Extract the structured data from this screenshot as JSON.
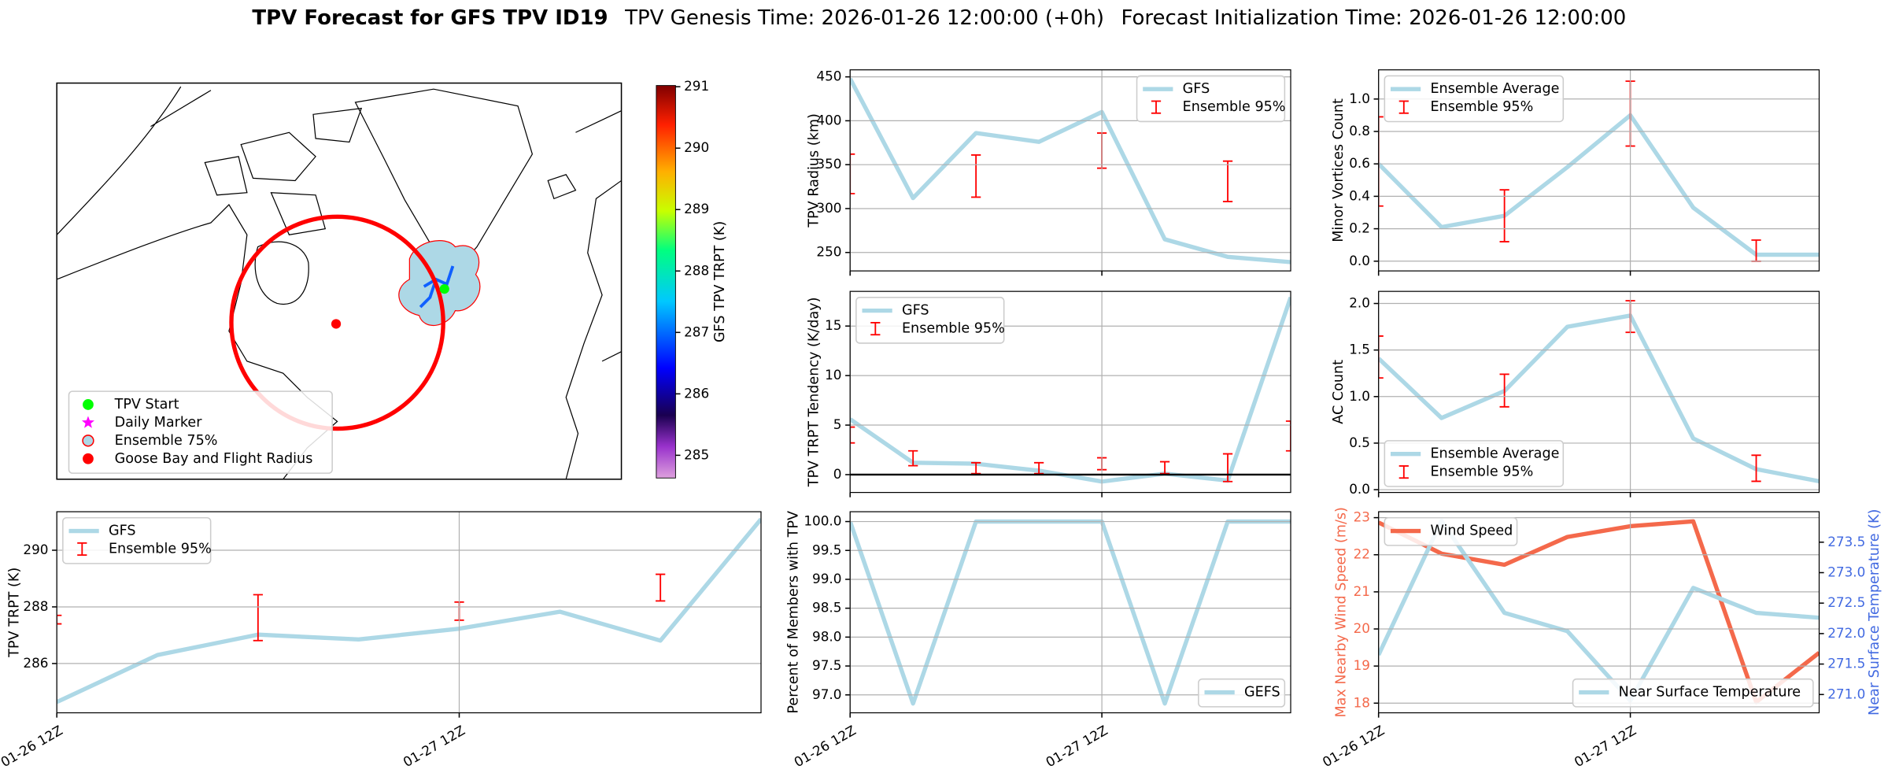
{
  "title": {
    "main": "TPV Forecast for GFS TPV ID19",
    "genesis": "TPV Genesis Time: 2026-01-26 12:00:00 (+0h)",
    "init": "Forecast Initialization Time: 2026-01-26 12:00:00"
  },
  "chart_data": [
    {
      "type": "map",
      "legend": [
        {
          "name": "TPV Start",
          "marker": "o",
          "color": "#00ff00"
        },
        {
          "name": "Daily Marker",
          "marker": "*",
          "color": "#ff00ff"
        },
        {
          "name": "Ensemble 75%",
          "marker": "o",
          "color": "#add8e6",
          "edgecolor": "#ff0000"
        },
        {
          "name": "Goose Bay and Flight Radius",
          "marker": "o",
          "color": "#ff0000"
        }
      ],
      "legend_loc": "lower left",
      "colorbar": {
        "label": "GFS TPV TRPT (K)",
        "lim": [
          284.63,
          291.02
        ],
        "ticks": [
          285,
          286,
          287,
          288,
          289,
          290,
          291
        ]
      }
    },
    {
      "type": "line",
      "ylabel": "TPV Radius (km)",
      "grid": true,
      "legend": "upper right",
      "x": [
        "01-26 12Z",
        "01-26 18Z",
        "01-27 00Z",
        "01-27 06Z",
        "01-27 12Z",
        "01-27 18Z",
        "01-28 00Z",
        "01-28 06Z"
      ],
      "ylim": [
        229,
        458
      ],
      "yticks": [
        250,
        300,
        350,
        400,
        450
      ],
      "series": [
        {
          "name": "GFS",
          "color": "#add8e6",
          "values": [
            448,
            312,
            386,
            376,
            410,
            265,
            245,
            239
          ]
        },
        {
          "name": "Ensemble 95%",
          "type": "errorbar",
          "color": "#ff0000",
          "values": [
            [
              317,
              362
            ],
            null,
            [
              313,
              361
            ],
            null,
            [
              346,
              386
            ],
            null,
            [
              308,
              354
            ],
            null
          ]
        }
      ]
    },
    {
      "type": "line",
      "ylabel": "Minor Vortices Count",
      "grid": true,
      "legend": "upper left",
      "x": [
        "01-26 12Z",
        "01-26 18Z",
        "01-27 00Z",
        "01-27 06Z",
        "01-27 12Z",
        "01-27 18Z",
        "01-28 00Z",
        "01-28 06Z"
      ],
      "ylim": [
        -0.06,
        1.18
      ],
      "yticks": [
        {
          "value": 0,
          "label": "0.0"
        },
        0.2,
        0.4,
        0.6,
        0.8,
        {
          "value": 1,
          "label": "1.0"
        }
      ],
      "series": [
        {
          "name": "Ensemble Average",
          "color": "#add8e6",
          "values": [
            0.6,
            0.21,
            0.28,
            0.58,
            0.9,
            0.33,
            0.04,
            0.04
          ]
        },
        {
          "name": "Ensemble 95%",
          "type": "errorbar",
          "color": "#ff0000",
          "values": [
            [
              0.34,
              0.89
            ],
            null,
            [
              0.12,
              0.44
            ],
            null,
            [
              0.71,
              1.11
            ],
            null,
            [
              0.0,
              0.13
            ],
            null
          ]
        }
      ]
    },
    {
      "type": "line",
      "ylabel": "TPV TRPT Tendency (K/day)",
      "grid": true,
      "legend": "upper left",
      "hline": 0,
      "x": [
        "01-26 12Z",
        "01-26 18Z",
        "01-27 00Z",
        "01-27 06Z",
        "01-27 12Z",
        "01-27 18Z",
        "01-28 00Z",
        "01-28 06Z"
      ],
      "ylim": [
        -1.8,
        18.5
      ],
      "yticks": [
        0,
        5,
        10,
        15
      ],
      "series": [
        {
          "name": "GFS",
          "color": "#add8e6",
          "values": [
            5.6,
            1.2,
            1.1,
            0.4,
            -0.7,
            0.1,
            -0.6,
            17.9
          ]
        },
        {
          "name": "Ensemble 95%",
          "type": "errorbar",
          "color": "#ff0000",
          "values": [
            [
              3.2,
              4.8
            ],
            [
              0.9,
              2.4
            ],
            [
              0.1,
              1.2
            ],
            [
              0.1,
              1.2
            ],
            [
              0.5,
              1.7
            ],
            [
              0.1,
              1.3
            ],
            [
              -0.7,
              2.1
            ],
            [
              2.4,
              5.4
            ]
          ]
        }
      ]
    },
    {
      "type": "line",
      "ylabel": "AC Count",
      "grid": true,
      "legend": "lower left",
      "x": [
        "01-26 12Z",
        "01-26 18Z",
        "01-27 00Z",
        "01-27 06Z",
        "01-27 12Z",
        "01-27 18Z",
        "01-28 00Z",
        "01-28 06Z"
      ],
      "ylim": [
        -0.03,
        2.13
      ],
      "yticks": [
        {
          "value": 0,
          "label": "0.0"
        },
        0.5,
        {
          "value": 1,
          "label": "1.0"
        },
        1.5,
        {
          "value": 2,
          "label": "2.0"
        }
      ],
      "series": [
        {
          "name": "Ensemble Average",
          "color": "#add8e6",
          "values": [
            1.41,
            0.77,
            1.06,
            1.75,
            1.87,
            0.55,
            0.22,
            0.09
          ]
        },
        {
          "name": "Ensemble 95%",
          "type": "errorbar",
          "color": "#ff0000",
          "values": [
            [
              1.2,
              1.65
            ],
            null,
            [
              0.89,
              1.24
            ],
            null,
            [
              1.69,
              2.03
            ],
            null,
            [
              0.09,
              0.37
            ],
            null
          ]
        }
      ]
    },
    {
      "type": "line",
      "ylabel": "TPV TRPT (K)",
      "grid": true,
      "legend": "upper left",
      "x": [
        "01-26 12Z",
        "01-26 18Z",
        "01-27 00Z",
        "01-27 06Z",
        "01-27 12Z",
        "01-27 18Z",
        "01-28 00Z",
        "01-28 06Z"
      ],
      "xticks": [
        "01-26 12Z",
        "01-27 12Z"
      ],
      "ylim": [
        284.26,
        291.36
      ],
      "yticks": [
        286,
        288,
        290
      ],
      "series": [
        {
          "name": "GFS",
          "color": "#add8e6",
          "values": [
            284.64,
            286.3,
            287.02,
            286.85,
            287.23,
            287.83,
            286.81,
            291.1
          ]
        },
        {
          "name": "Ensemble 95%",
          "type": "errorbar",
          "color": "#ff0000",
          "values": [
            [
              287.4,
              287.7
            ],
            null,
            [
              286.81,
              288.43
            ],
            null,
            [
              287.53,
              288.17
            ],
            null,
            [
              288.21,
              289.15
            ],
            null
          ]
        }
      ]
    },
    {
      "type": "line",
      "ylabel": "Percent of Members with TPV",
      "grid": true,
      "legend": "lower right",
      "x": [
        "01-26 12Z",
        "01-26 18Z",
        "01-27 00Z",
        "01-27 06Z",
        "01-27 12Z",
        "01-27 18Z",
        "01-28 00Z",
        "01-28 06Z"
      ],
      "xticks": [
        "01-26 12Z",
        "01-27 12Z"
      ],
      "ylim": [
        96.69,
        100.17
      ],
      "yticks": [
        {
          "value": 97,
          "label": "97.0"
        },
        97.5,
        {
          "value": 98,
          "label": "98.0"
        },
        98.5,
        {
          "value": 99,
          "label": "99.0"
        },
        99.5,
        {
          "value": 100,
          "label": "100.0"
        }
      ],
      "series": [
        {
          "name": "GEFS",
          "color": "#add8e6",
          "values": [
            100,
            96.85,
            100,
            100,
            100,
            96.85,
            100,
            100
          ]
        }
      ]
    },
    {
      "type": "line",
      "ylabel": "Max Nearby Wind Speed (m/s)",
      "y2label": "Near Surface Temperature (K)",
      "grid": true,
      "legend": "upper left",
      "legend2": "lower right",
      "x": [
        "01-26 12Z",
        "01-26 18Z",
        "01-27 00Z",
        "01-27 06Z",
        "01-27 12Z",
        "01-27 18Z",
        "01-28 00Z",
        "01-28 06Z"
      ],
      "xticks": [
        "01-26 12Z",
        "01-27 12Z"
      ],
      "ylim": [
        17.74,
        23.16
      ],
      "yticks": [
        18,
        19,
        20,
        21,
        22,
        23
      ],
      "y2lim": [
        270.7,
        274.0
      ],
      "y2ticks": [
        {
          "value": 271,
          "label": "271.0"
        },
        271.5,
        {
          "value": 272,
          "label": "272.0"
        },
        272.5,
        {
          "value": 273,
          "label": "273.0"
        },
        273.5
      ],
      "y2color": "#4169e1",
      "series": [
        {
          "name": "Wind Speed",
          "color": "#f4694b",
          "values": [
            22.87,
            22.03,
            21.73,
            22.48,
            22.77,
            22.9,
            18.03,
            19.36
          ]
        },
        {
          "name": "Near Surface Temperature",
          "color": "#add8e6",
          "axis": "y2",
          "values": [
            271.65,
            273.85,
            272.34,
            272.04,
            270.9,
            272.75,
            272.34,
            272.26
          ]
        }
      ]
    }
  ]
}
